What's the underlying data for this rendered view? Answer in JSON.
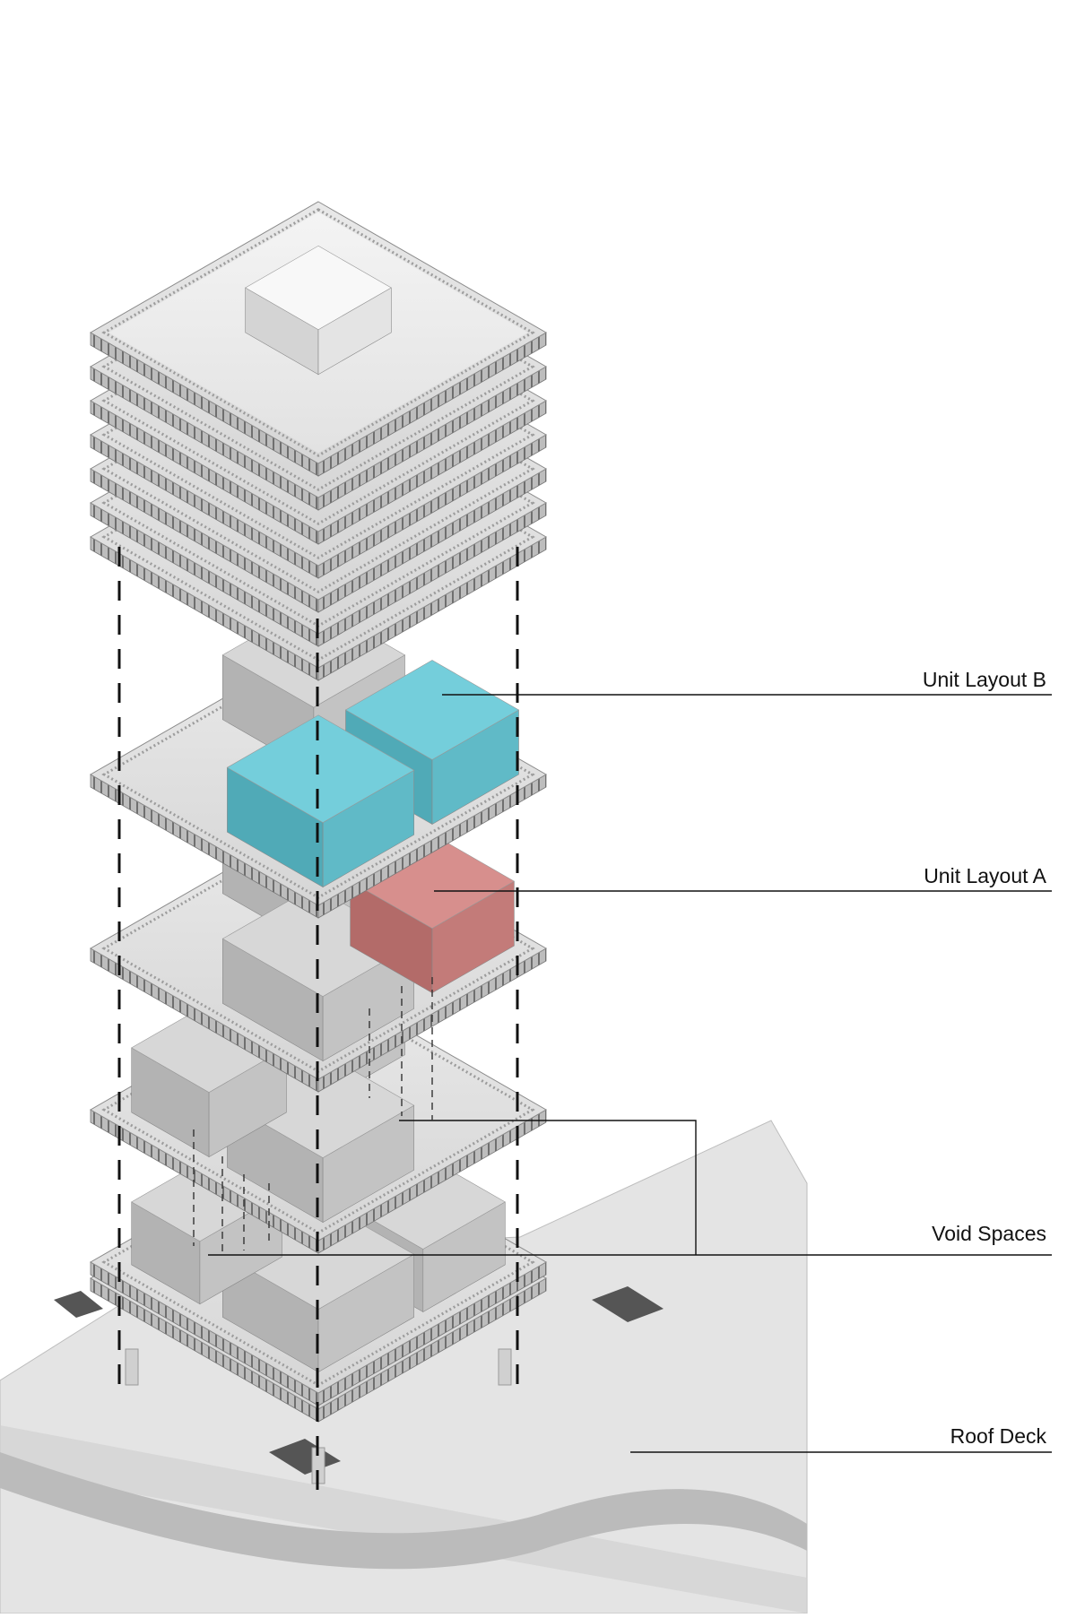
{
  "labels": {
    "unit_layout_b": "Unit Layout B",
    "unit_layout_a": "Unit Layout A",
    "void_spaces": "Void Spaces",
    "roof_deck": "Roof Deck"
  },
  "colors": {
    "unit_layout_b": "#6cc6d3",
    "unit_layout_a": "#cf8785",
    "massing": "#cfcfcf",
    "background": "#ffffff"
  }
}
